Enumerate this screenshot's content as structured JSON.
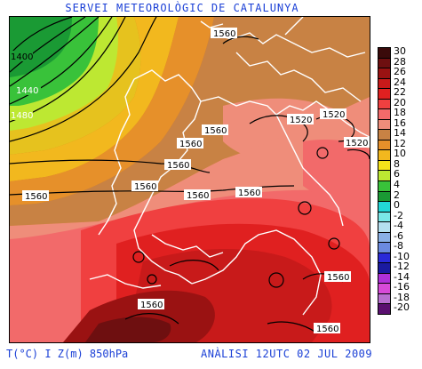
{
  "header": {
    "title": "SERVEI METEOROLÒGIC DE CATALUNYA"
  },
  "footer": {
    "variables": "T(°C) I Z(m) 850hPa",
    "analysis": "ANÀLISI 12UTC 02 JUL 2009"
  },
  "colors": {
    "text_blue": "#1a3fd6"
  },
  "legend": {
    "entries": [
      {
        "label": "30",
        "color": "#3a0a0a"
      },
      {
        "label": "28",
        "color": "#6e0f10"
      },
      {
        "label": "26",
        "color": "#9a1212"
      },
      {
        "label": "24",
        "color": "#c81a1a"
      },
      {
        "label": "22",
        "color": "#e02020"
      },
      {
        "label": "20",
        "color": "#f04040"
      },
      {
        "label": "18",
        "color": "#f26a6a"
      },
      {
        "label": "16",
        "color": "#ef8d7a"
      },
      {
        "label": "14",
        "color": "#c88244"
      },
      {
        "label": "12",
        "color": "#e6902a"
      },
      {
        "label": "10",
        "color": "#f2b81e"
      },
      {
        "label": "8",
        "color": "#f5e31a"
      },
      {
        "label": "6",
        "color": "#bde832"
      },
      {
        "label": "4",
        "color": "#39c23a"
      },
      {
        "label": "2",
        "color": "#1a9a34"
      },
      {
        "label": "0",
        "color": "#22d7d7"
      },
      {
        "label": "-2",
        "color": "#7ae8e8"
      },
      {
        "label": "-4",
        "color": "#b5e0f0"
      },
      {
        "label": "-6",
        "color": "#8ab0e6"
      },
      {
        "label": "-8",
        "color": "#6b8ae0"
      },
      {
        "label": "-10",
        "color": "#2a2ad8"
      },
      {
        "label": "-12",
        "color": "#1a1aa0"
      },
      {
        "label": "-14",
        "color": "#b030d8"
      },
      {
        "label": "-16",
        "color": "#d84ad8"
      },
      {
        "label": "-18",
        "color": "#b870d0"
      },
      {
        "label": "-20",
        "color": "#5a1070"
      }
    ]
  },
  "isolines": {
    "labels": [
      "1400",
      "1440",
      "1480",
      "1560",
      "1560",
      "1560",
      "1560",
      "1560",
      "1560",
      "1560",
      "1560",
      "1560",
      "1520",
      "1520",
      "1520",
      "1560",
      "1560"
    ]
  }
}
